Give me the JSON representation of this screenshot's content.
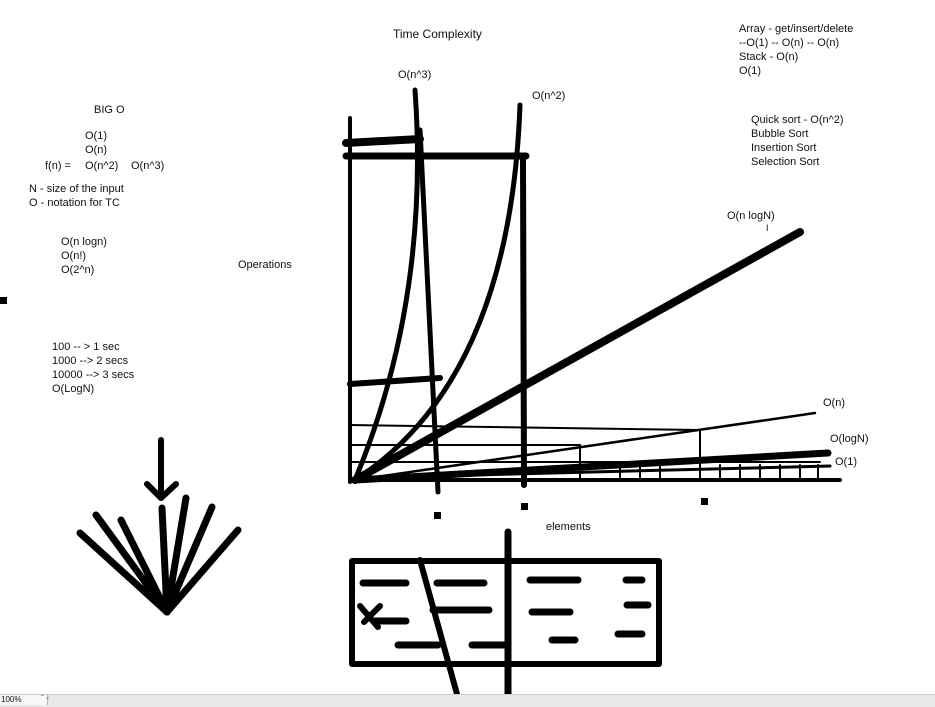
{
  "title": "Time Complexity",
  "big_o_notes": {
    "heading": "BIG O",
    "lines": [
      "O(1)",
      "O(n)"
    ],
    "fn_label": "f(n) =",
    "fn_values": [
      "O(n^2)",
      "O(n^3)"
    ],
    "definitions": [
      "N - size of the input",
      "O - notation for TC"
    ],
    "more": [
      "O(n logn)",
      "O(n!)",
      "O(2^n)"
    ]
  },
  "timing_notes": [
    "100 -- > 1 sec",
    "1000 --> 2 secs",
    "10000 --> 3 secs",
    "O(LogN)"
  ],
  "axes": {
    "y_label": "Operations",
    "x_label": "elements"
  },
  "curve_labels": {
    "cubic": "O(n^3)",
    "quadratic": "O(n^2)",
    "nlogn": "O(n logN)",
    "linear": "O(n)",
    "log": "O(logN)",
    "constant": "O(1)"
  },
  "array_notes": [
    "Array - get/insert/delete",
    "--O(1) -- O(n) -- O(n)",
    "Stack - O(n)",
    "O(1)"
  ],
  "sort_notes": [
    "Quick sort - O(n^2)",
    "Bubble Sort",
    "Insertion Sort",
    "Selection Sort"
  ],
  "cursor_glyph": "I",
  "status_bar": {
    "zoom": "100%",
    "stepper": "⌃⌄"
  },
  "stroke_color": "#000000"
}
